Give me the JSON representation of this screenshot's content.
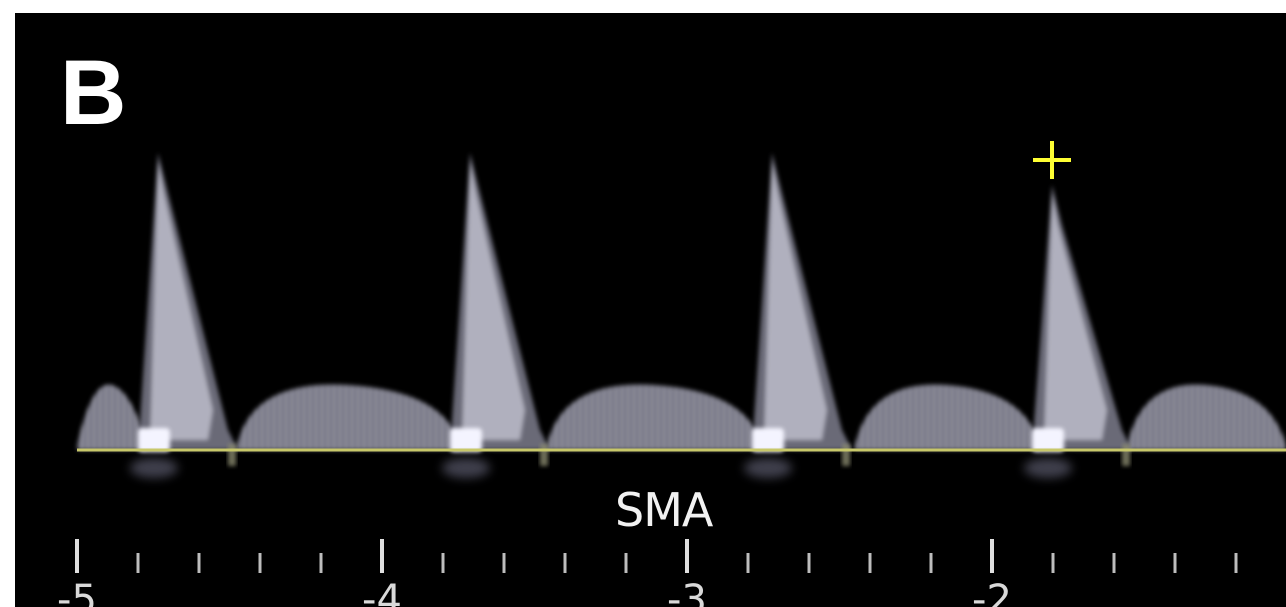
{
  "panel": {
    "letter": "B",
    "vessel_label": "SMA"
  },
  "scale": {
    "tick_labels": [
      "-5",
      "-4",
      "-3",
      "-2"
    ]
  },
  "colors": {
    "background": "#000000",
    "baseline": "#c8c86a",
    "marker": "#ffff33",
    "waveform": "#d0d0dc"
  },
  "marker": {
    "symbol": "+"
  },
  "waveform": {
    "peak_count": 4
  }
}
